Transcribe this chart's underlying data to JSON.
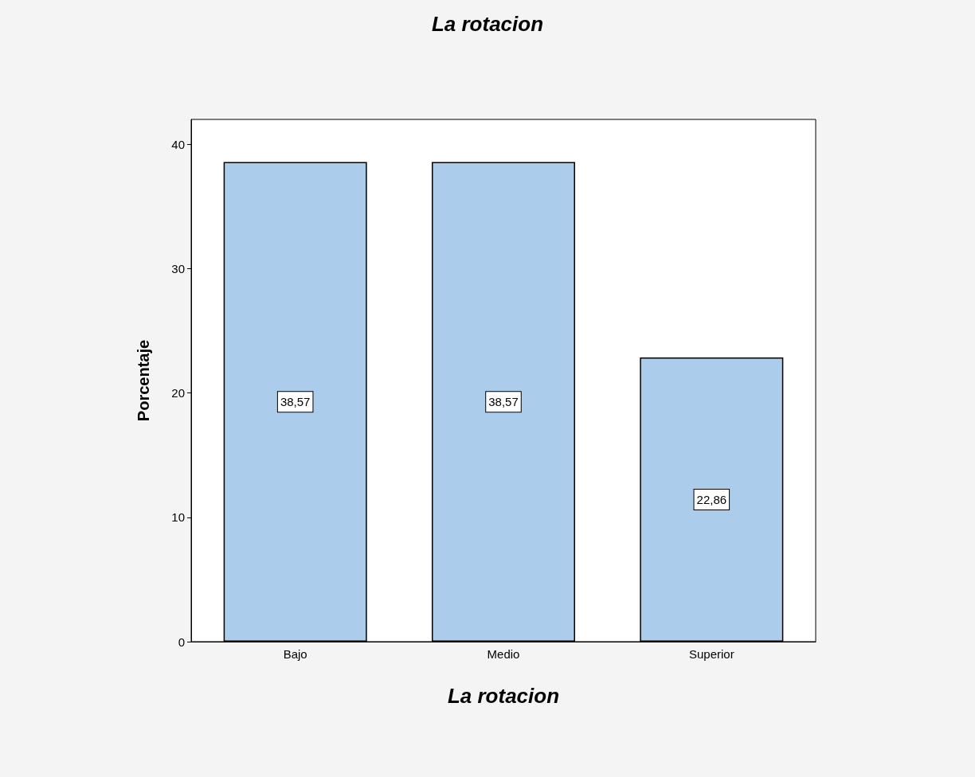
{
  "chart_data": {
    "type": "bar",
    "title": "La rotacion",
    "xlabel": "La rotacion",
    "ylabel": "Porcentaje",
    "categories": [
      "Bajo",
      "Medio",
      "Superior"
    ],
    "values": [
      38.57,
      38.57,
      22.86
    ],
    "value_labels": [
      "38,57",
      "38,57",
      "22,86"
    ],
    "color": "#abcdeb",
    "ylim": [
      0,
      42
    ],
    "yticks": [
      0,
      10,
      20,
      30,
      40
    ],
    "grid": false
  }
}
